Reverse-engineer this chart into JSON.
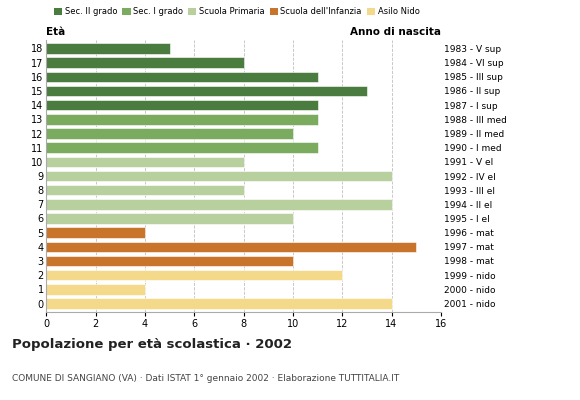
{
  "ages": [
    18,
    17,
    16,
    15,
    14,
    13,
    12,
    11,
    10,
    9,
    8,
    7,
    6,
    5,
    4,
    3,
    2,
    1,
    0
  ],
  "years": [
    "1983 - V sup",
    "1984 - VI sup",
    "1985 - III sup",
    "1986 - II sup",
    "1987 - I sup",
    "1988 - III med",
    "1989 - II med",
    "1990 - I med",
    "1991 - V el",
    "1992 - IV el",
    "1993 - III el",
    "1994 - II el",
    "1995 - I el",
    "1996 - mat",
    "1997 - mat",
    "1998 - mat",
    "1999 - nido",
    "2000 - nido",
    "2001 - nido"
  ],
  "values": [
    5,
    8,
    11,
    13,
    11,
    11,
    10,
    11,
    8,
    14,
    8,
    14,
    10,
    4,
    15,
    10,
    12,
    4,
    14
  ],
  "colors": [
    "#4a7c3f",
    "#4a7c3f",
    "#4a7c3f",
    "#4a7c3f",
    "#4a7c3f",
    "#7aab5e",
    "#7aab5e",
    "#7aab5e",
    "#b8cf9e",
    "#b8cf9e",
    "#b8cf9e",
    "#b8cf9e",
    "#b8cf9e",
    "#c8742a",
    "#c8742a",
    "#c8742a",
    "#f5d98b",
    "#f5d98b",
    "#f5d98b"
  ],
  "legend_labels": [
    "Sec. II grado",
    "Sec. I grado",
    "Scuola Primaria",
    "Scuola dell'Infanzia",
    "Asilo Nido"
  ],
  "legend_colors": [
    "#4a7c3f",
    "#7aab5e",
    "#b8cf9e",
    "#c8742a",
    "#f5d98b"
  ],
  "title": "Popolazione per età scolastica · 2002",
  "subtitle": "COMUNE DI SANGIANO (VA) · Dati ISTAT 1° gennaio 2002 · Elaborazione TUTTITALIA.IT",
  "ylabel_eta": "Età",
  "ylabel_anno": "Anno di nascita",
  "xlim": [
    0,
    16
  ],
  "xticks": [
    0,
    2,
    4,
    6,
    8,
    10,
    12,
    14,
    16
  ],
  "bg_color": "#ffffff"
}
